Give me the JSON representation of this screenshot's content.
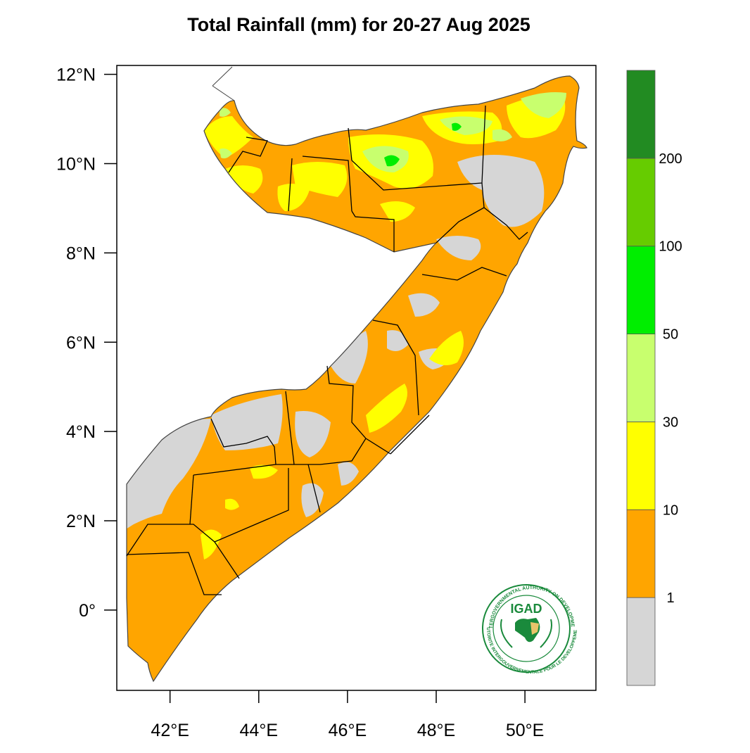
{
  "title": "Total Rainfall (mm) for 20-27 Aug 2025",
  "lat_ticks": [
    {
      "value": 12,
      "label": "12°N"
    },
    {
      "value": 10,
      "label": "10°N"
    },
    {
      "value": 8,
      "label": "8°N"
    },
    {
      "value": 6,
      "label": "6°N"
    },
    {
      "value": 4,
      "label": "4°N"
    },
    {
      "value": 2,
      "label": "2°N"
    },
    {
      "value": 0,
      "label": "0°"
    }
  ],
  "lon_ticks": [
    {
      "value": 42,
      "label": "42°E"
    },
    {
      "value": 44,
      "label": "44°E"
    },
    {
      "value": 46,
      "label": "46°E"
    },
    {
      "value": 48,
      "label": "48°E"
    },
    {
      "value": 50,
      "label": "50°E"
    }
  ],
  "extent": {
    "lon": [
      40.8,
      51.6
    ],
    "lat": [
      -1.8,
      12.2
    ]
  },
  "colorbar": {
    "bins": [
      {
        "color": "#d6d6d6",
        "upper": "1"
      },
      {
        "color": "#ffa500",
        "upper": "10"
      },
      {
        "color": "#ffff00",
        "upper": "30"
      },
      {
        "color": "#c8ff6e",
        "upper": "50"
      },
      {
        "color": "#00ee00",
        "upper": "100"
      },
      {
        "color": "#66cc00",
        "upper": "200"
      },
      {
        "color": "#228b22",
        "upper": ""
      }
    ]
  },
  "logo": {
    "name": "IGAD",
    "ring_text": "INTERGOVERNMENTAL AUTHORITY ON DEVELOPMENT",
    "ring_text_fr": "AUTORITE INTERGOUVERNEMENTALE POUR LE DEVELOPPEMENT"
  }
}
